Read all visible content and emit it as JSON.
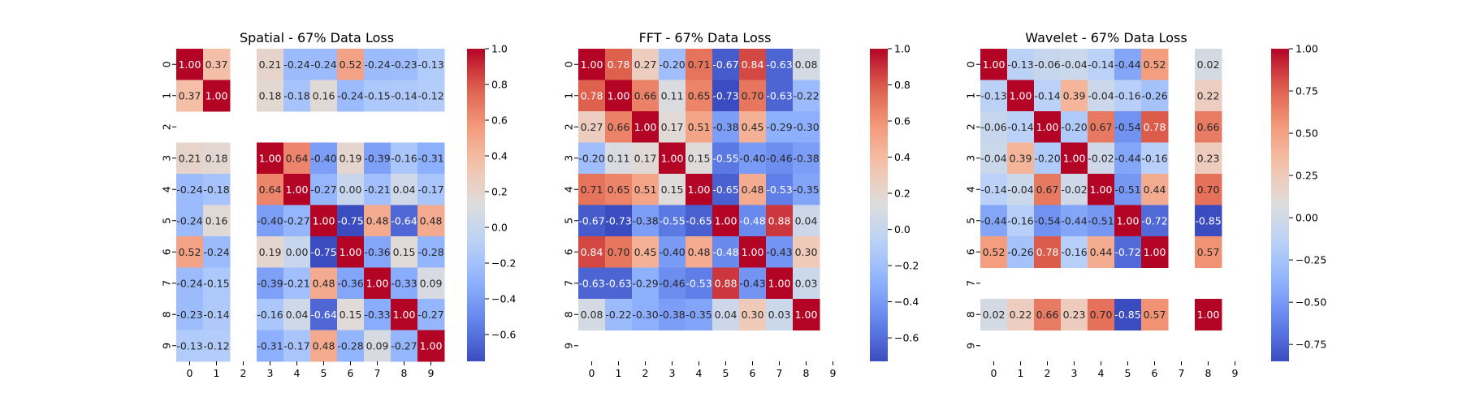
{
  "figure": {
    "colormap": "coolwarm",
    "nan_color": "#ffffff"
  },
  "chart_data": [
    {
      "type": "heatmap",
      "title": "Spatial - 67% Data Loss",
      "x_labels": [
        "0",
        "1",
        "2",
        "3",
        "4",
        "5",
        "6",
        "7",
        "8",
        "9"
      ],
      "y_labels": [
        "0",
        "1",
        "2",
        "3",
        "4",
        "5",
        "6",
        "7",
        "8",
        "9"
      ],
      "vmin": -0.75,
      "vmax": 1.0,
      "colorbar_ticks": [
        -0.6,
        -0.4,
        -0.2,
        0.0,
        0.2,
        0.4,
        0.6,
        0.8,
        1.0
      ],
      "colorbar_labels": [
        "−0.6",
        "−0.4",
        "−0.2",
        "0.0",
        "0.2",
        "0.4",
        "0.6",
        "0.8",
        "1.0"
      ],
      "values": [
        [
          1.0,
          0.37,
          null,
          0.21,
          -0.24,
          -0.24,
          0.52,
          -0.24,
          -0.23,
          -0.13
        ],
        [
          0.37,
          1.0,
          null,
          0.18,
          -0.18,
          0.16,
          -0.24,
          -0.15,
          -0.14,
          -0.12
        ],
        [
          null,
          null,
          null,
          null,
          null,
          null,
          null,
          null,
          null,
          null
        ],
        [
          0.21,
          0.18,
          null,
          1.0,
          0.64,
          -0.4,
          0.19,
          -0.39,
          -0.16,
          -0.31
        ],
        [
          -0.24,
          -0.18,
          null,
          0.64,
          1.0,
          -0.27,
          -0.0,
          -0.21,
          0.04,
          -0.17
        ],
        [
          -0.24,
          0.16,
          null,
          -0.4,
          -0.27,
          1.0,
          -0.75,
          0.48,
          -0.64,
          0.48
        ],
        [
          0.52,
          -0.24,
          null,
          0.19,
          -0.0,
          -0.75,
          1.0,
          -0.36,
          0.15,
          -0.28
        ],
        [
          -0.24,
          -0.15,
          null,
          -0.39,
          -0.21,
          0.48,
          -0.36,
          1.0,
          -0.33,
          0.09
        ],
        [
          -0.23,
          -0.14,
          null,
          -0.16,
          0.04,
          -0.64,
          0.15,
          -0.33,
          1.0,
          -0.27
        ],
        [
          -0.13,
          -0.12,
          null,
          -0.31,
          -0.17,
          0.48,
          -0.28,
          0.09,
          -0.27,
          1.0
        ]
      ]
    },
    {
      "type": "heatmap",
      "title": "FFT - 67% Data Loss",
      "x_labels": [
        "0",
        "1",
        "2",
        "3",
        "4",
        "5",
        "6",
        "7",
        "8",
        "9"
      ],
      "y_labels": [
        "0",
        "1",
        "2",
        "3",
        "4",
        "5",
        "6",
        "7",
        "8",
        "9"
      ],
      "vmin": -0.73,
      "vmax": 1.0,
      "colorbar_ticks": [
        -0.6,
        -0.4,
        -0.2,
        0.0,
        0.2,
        0.4,
        0.6,
        0.8,
        1.0
      ],
      "colorbar_labels": [
        "−0.6",
        "−0.4",
        "−0.2",
        "0.0",
        "0.2",
        "0.4",
        "0.6",
        "0.8",
        "1.0"
      ],
      "values": [
        [
          1.0,
          0.78,
          0.27,
          -0.2,
          0.71,
          -0.67,
          0.84,
          -0.63,
          0.08,
          null
        ],
        [
          0.78,
          1.0,
          0.66,
          0.11,
          0.65,
          -0.73,
          0.7,
          -0.63,
          -0.22,
          null
        ],
        [
          0.27,
          0.66,
          1.0,
          0.17,
          0.51,
          -0.38,
          0.45,
          -0.29,
          -0.3,
          null
        ],
        [
          -0.2,
          0.11,
          0.17,
          1.0,
          0.15,
          -0.55,
          -0.4,
          -0.46,
          -0.38,
          null
        ],
        [
          0.71,
          0.65,
          0.51,
          0.15,
          1.0,
          -0.65,
          0.48,
          -0.53,
          -0.35,
          null
        ],
        [
          -0.67,
          -0.73,
          -0.38,
          -0.55,
          -0.65,
          1.0,
          -0.48,
          0.88,
          0.04,
          null
        ],
        [
          0.84,
          0.7,
          0.45,
          -0.4,
          0.48,
          -0.48,
          1.0,
          -0.43,
          0.3,
          null
        ],
        [
          -0.63,
          -0.63,
          -0.29,
          -0.46,
          -0.53,
          0.88,
          -0.43,
          1.0,
          0.03,
          null
        ],
        [
          0.08,
          -0.22,
          -0.3,
          -0.38,
          -0.35,
          0.04,
          0.3,
          0.03,
          1.0,
          null
        ],
        [
          null,
          null,
          null,
          null,
          null,
          null,
          null,
          null,
          null,
          null
        ]
      ]
    },
    {
      "type": "heatmap",
      "title": "Wavelet - 67% Data Loss",
      "x_labels": [
        "0",
        "1",
        "2",
        "3",
        "4",
        "5",
        "6",
        "7",
        "8",
        "9"
      ],
      "y_labels": [
        "0",
        "1",
        "2",
        "3",
        "4",
        "5",
        "6",
        "7",
        "8",
        "9"
      ],
      "vmin": -0.85,
      "vmax": 1.0,
      "colorbar_ticks": [
        -0.75,
        -0.5,
        -0.25,
        0.0,
        0.25,
        0.5,
        0.75,
        1.0
      ],
      "colorbar_labels": [
        "−0.75",
        "−0.50",
        "−0.25",
        "0.00",
        "0.25",
        "0.50",
        "0.75",
        "1.00"
      ],
      "values": [
        [
          1.0,
          -0.13,
          -0.06,
          -0.04,
          -0.14,
          -0.44,
          0.52,
          null,
          0.02,
          null
        ],
        [
          -0.13,
          1.0,
          -0.14,
          0.39,
          -0.04,
          -0.16,
          -0.26,
          null,
          0.22,
          null
        ],
        [
          -0.06,
          -0.14,
          1.0,
          -0.2,
          0.67,
          -0.54,
          0.78,
          null,
          0.66,
          null
        ],
        [
          -0.04,
          0.39,
          -0.2,
          1.0,
          -0.02,
          -0.44,
          -0.16,
          null,
          0.23,
          null
        ],
        [
          -0.14,
          -0.04,
          0.67,
          -0.02,
          1.0,
          -0.51,
          0.44,
          null,
          0.7,
          null
        ],
        [
          -0.44,
          -0.16,
          -0.54,
          -0.44,
          -0.51,
          1.0,
          -0.72,
          null,
          -0.85,
          null
        ],
        [
          0.52,
          -0.26,
          0.78,
          -0.16,
          0.44,
          -0.72,
          1.0,
          null,
          0.57,
          null
        ],
        [
          null,
          null,
          null,
          null,
          null,
          null,
          null,
          null,
          null,
          null
        ],
        [
          0.02,
          0.22,
          0.66,
          0.23,
          0.7,
          -0.85,
          0.57,
          null,
          1.0,
          null
        ],
        [
          null,
          null,
          null,
          null,
          null,
          null,
          null,
          null,
          null,
          null
        ]
      ]
    }
  ]
}
